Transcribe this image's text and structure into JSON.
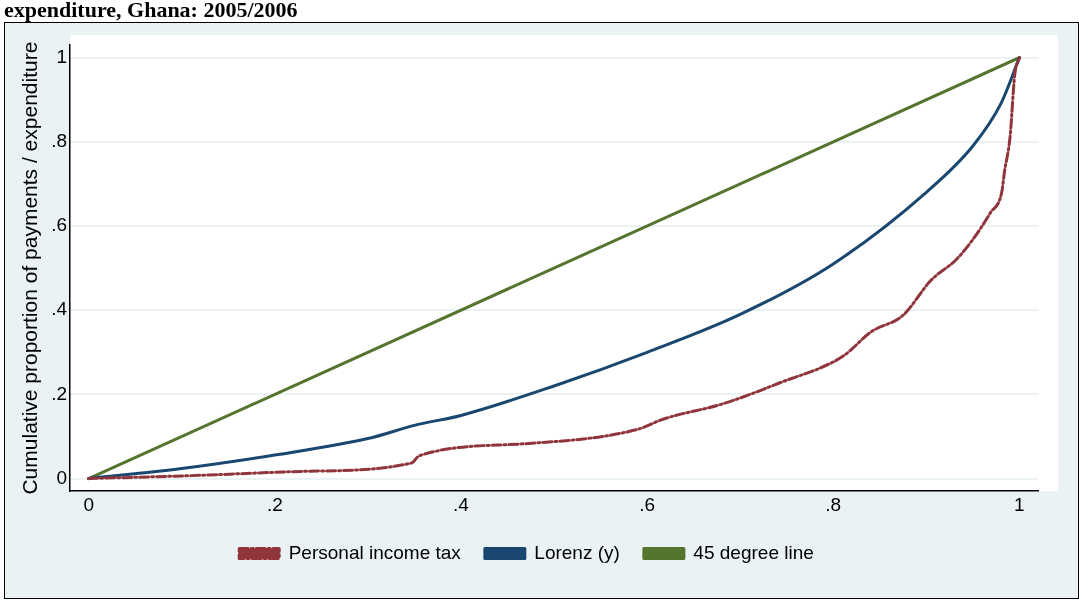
{
  "chart_data": {
    "type": "line",
    "title": "expenditure, Ghana: 2005/2006",
    "ylabel": "Cumulative proportion of payments / expenditure",
    "xlim": [
      -0.02,
      1.02
    ],
    "ylim": [
      -0.03,
      1.03
    ],
    "xticks": [
      0,
      {
        "value": 0.2,
        "label": ".2"
      },
      {
        "value": 0.4,
        "label": ".4"
      },
      {
        "value": 0.6,
        "label": ".6"
      },
      {
        "value": 0.8,
        "label": ".8"
      },
      1
    ],
    "yticks": [
      {
        "value": 0,
        "label": "0"
      },
      {
        "value": 0.2,
        "label": ".2"
      },
      {
        "value": 0.4,
        "label": ".4"
      },
      {
        "value": 0.6,
        "label": ".6"
      },
      {
        "value": 0.8,
        "label": ".8"
      },
      1
    ],
    "grid": "y",
    "legend": "bottom",
    "marker": "none",
    "series": [
      {
        "name": "Lorenz (y)",
        "color": "#1a476f",
        "line_style": "solid",
        "x": [
          0,
          0.1,
          0.2,
          0.3,
          0.351,
          0.4,
          0.5,
          0.6,
          0.7,
          0.8,
          0.9,
          0.95,
          0.98,
          1
        ],
        "values": [
          0,
          0.024,
          0.056,
          0.095,
          0.127,
          0.15,
          0.22,
          0.3,
          0.39,
          0.51,
          0.68,
          0.79,
          0.89,
          1
        ]
      },
      {
        "name": "Personal income tax",
        "color": "#90353b",
        "line_style": "dashdot",
        "x": [
          0,
          0.111,
          0.23,
          0.347,
          0.355,
          0.47,
          0.59,
          0.617,
          0.682,
          0.742,
          0.81,
          0.841,
          0.875,
          0.905,
          0.932,
          0.95,
          0.969,
          0.981,
          0.984,
          0.99,
          0.995,
          1
        ],
        "values": [
          0,
          0.007,
          0.017,
          0.037,
          0.054,
          0.083,
          0.117,
          0.141,
          0.178,
          0.227,
          0.29,
          0.349,
          0.388,
          0.471,
          0.52,
          0.568,
          0.632,
          0.68,
          0.729,
          0.812,
          0.959,
          1
        ]
      },
      {
        "name": "45 degree line",
        "color": "#55752f",
        "line_style": "solid",
        "x": [
          0,
          1
        ],
        "values": [
          0,
          1
        ]
      }
    ]
  }
}
